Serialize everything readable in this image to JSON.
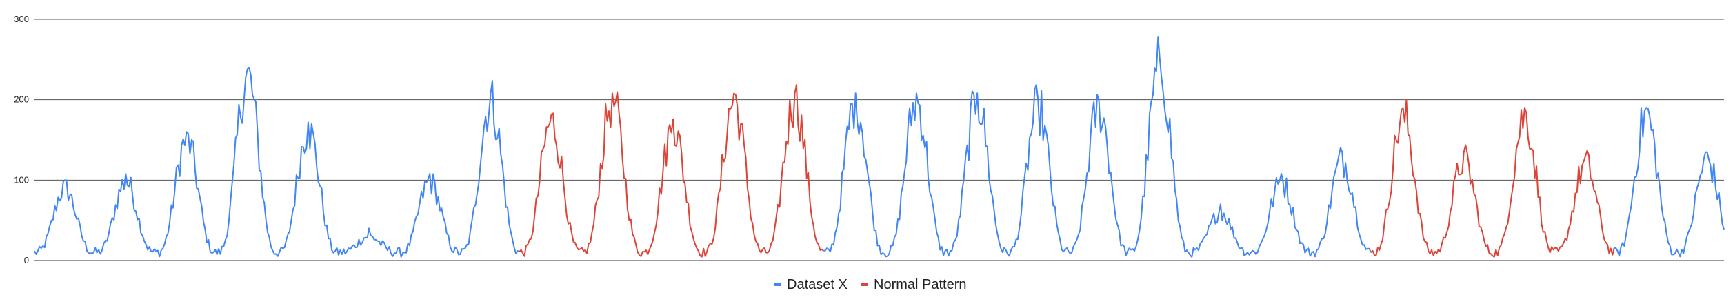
{
  "chart_data": {
    "type": "line",
    "title": "",
    "xlabel": "",
    "ylabel": "",
    "ylim": [
      0,
      300
    ],
    "yticks": [
      0,
      100,
      200,
      300
    ],
    "grid": true,
    "legend_position": "bottom",
    "x_range": [
      0,
      1000
    ],
    "cycle_length": 36,
    "series": [
      {
        "name": "Dataset X",
        "color": "#4285f4"
      },
      {
        "name": "Normal Pattern",
        "color": "#db4437"
      }
    ],
    "cycle_peaks": [
      {
        "peak": 100,
        "series": "Dataset X"
      },
      {
        "peak": 108,
        "series": "Dataset X"
      },
      {
        "peak": 160,
        "series": "Dataset X"
      },
      {
        "peak": 238,
        "series": "Dataset X"
      },
      {
        "peak": 172,
        "series": "Dataset X"
      },
      {
        "peak": 40,
        "series": "Dataset X"
      },
      {
        "peak": 108,
        "series": "Dataset X"
      },
      {
        "peak": 208,
        "series": "Dataset X"
      },
      {
        "peak": 182,
        "series": "Normal Pattern"
      },
      {
        "peak": 208,
        "series": "Normal Pattern"
      },
      {
        "peak": 176,
        "series": "Normal Pattern"
      },
      {
        "peak": 208,
        "series": "Normal Pattern"
      },
      {
        "peak": 208,
        "series": "Normal Pattern"
      },
      {
        "peak": 208,
        "series": "Dataset X"
      },
      {
        "peak": 208,
        "series": "Dataset X"
      },
      {
        "peak": 208,
        "series": "Dataset X"
      },
      {
        "peak": 200,
        "series": "Dataset X"
      },
      {
        "peak": 200,
        "series": "Dataset X"
      },
      {
        "peak": 252,
        "series": "Dataset X"
      },
      {
        "peak": 70,
        "series": "Dataset X"
      },
      {
        "peak": 108,
        "series": "Dataset X"
      },
      {
        "peak": 135,
        "series": "Dataset X"
      },
      {
        "peak": 190,
        "series": "Normal Pattern"
      },
      {
        "peak": 135,
        "series": "Normal Pattern"
      },
      {
        "peak": 190,
        "series": "Normal Pattern"
      },
      {
        "peak": 130,
        "series": "Normal Pattern"
      },
      {
        "peak": 190,
        "series": "Dataset X"
      },
      {
        "peak": 135,
        "series": "Dataset X"
      },
      {
        "peak": 190,
        "series": "Dataset X"
      },
      {
        "peak": 135,
        "series": "Dataset X"
      },
      {
        "peak": 190,
        "series": "Dataset X"
      }
    ]
  }
}
